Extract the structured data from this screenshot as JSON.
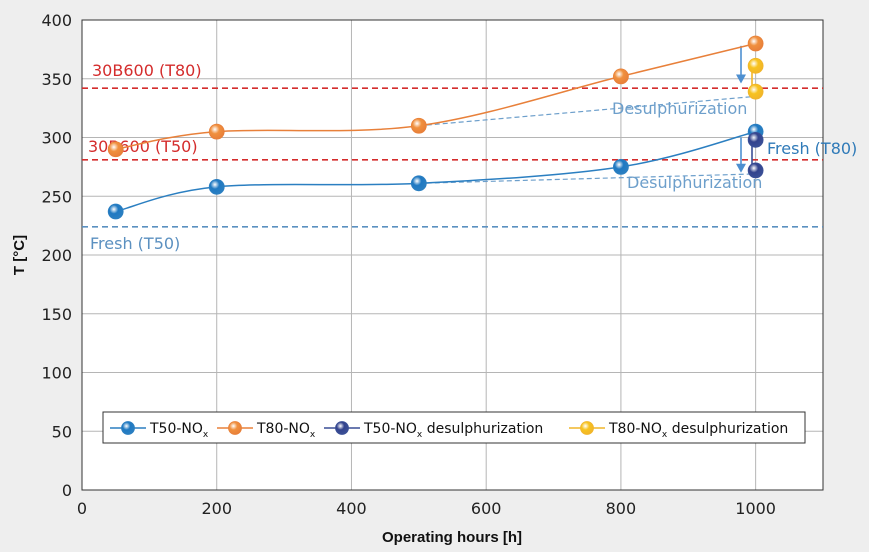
{
  "chart_data": {
    "type": "line",
    "xlabel": "Operating hours [h]",
    "ylabel": "T [°C]",
    "xlim": [
      0,
      1100
    ],
    "ylim": [
      0,
      400
    ],
    "xticks": [
      0,
      200,
      400,
      600,
      800,
      1000
    ],
    "yticks": [
      0,
      50,
      100,
      150,
      200,
      250,
      300,
      350,
      400
    ],
    "grid": true,
    "legend_position": "bottom",
    "series": [
      {
        "name": "T50-NO",
        "name_sub": "x",
        "color": "#2b7fc1",
        "marker_color": "#1f79c2",
        "x": [
          50,
          200,
          500,
          800,
          1000
        ],
        "y": [
          237,
          258,
          261,
          275,
          305
        ]
      },
      {
        "name": "T80-NO",
        "name_sub": "x",
        "color": "#e8803a",
        "marker_color": "#f0903e",
        "x": [
          50,
          200,
          500,
          800,
          1000
        ],
        "y": [
          290,
          305,
          310,
          352,
          380
        ]
      },
      {
        "name": "T50-NO",
        "name_sub": "x",
        "name_suffix": " desulphurization",
        "color": "#3a4f96",
        "marker_color": "#33438d",
        "x": [
          1000,
          1000
        ],
        "y": [
          298,
          272
        ]
      },
      {
        "name": "T80-NO",
        "name_sub": "x",
        "name_suffix": " desulphurization",
        "color": "#f1b52a",
        "marker_color": "#f7c31e",
        "x": [
          1000,
          1000
        ],
        "y": [
          361,
          339
        ]
      }
    ],
    "reference_lines": [
      {
        "label": "30B600 (T80)",
        "y": 342,
        "color": "#d42c2c"
      },
      {
        "label": "30B600 (T50)",
        "y": 281,
        "color": "#d42c2c"
      },
      {
        "label": "Fresh (T50)",
        "y": 224,
        "color": "#5b90c0"
      }
    ],
    "annotations": [
      {
        "text": "Desulphurization",
        "x": 500,
        "y": 310,
        "x2": 1000,
        "y2": 335,
        "color": "#6d9fcb"
      },
      {
        "text": "Desulphurization",
        "x": 500,
        "y": 261,
        "x2": 1000,
        "y2": 269,
        "color": "#6d9fcb"
      },
      {
        "text": "Fresh (T80)",
        "color": "#2f7ab8"
      }
    ]
  }
}
